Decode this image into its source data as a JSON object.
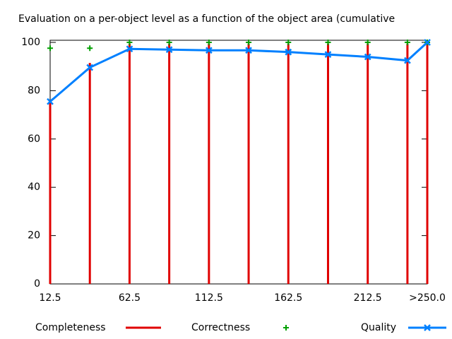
{
  "chart_data": {
    "type": "impulse-line",
    "title": "Evaluation on a per-object level as a function of the object area (cumulative",
    "x": [
      12.5,
      37.5,
      62.5,
      87.5,
      112.5,
      137.5,
      162.5,
      187.5,
      212.5,
      237.5,
      250
    ],
    "xlim": [
      12.5,
      250
    ],
    "xticks": [
      12.5,
      62.5,
      112.5,
      162.5,
      212.5,
      {
        "value": 250,
        "label": ">250.0"
      }
    ],
    "ylim": [
      0,
      100
    ],
    "yticks": [
      0,
      20,
      40,
      60,
      80,
      100
    ],
    "legend": "bottom",
    "series": [
      {
        "name": "Completeness",
        "color": "#e00000",
        "style": "impulses",
        "values": [
          75.5,
          91.5,
          99.5,
          99.5,
          99.5,
          99.5,
          99.5,
          99.5,
          99.5,
          99.5,
          100
        ]
      },
      {
        "name": "Correctness",
        "color": "#00a000",
        "style": "points",
        "values": [
          97.6,
          97.6,
          100,
          100,
          100,
          100,
          100,
          100,
          100,
          100,
          100
        ]
      },
      {
        "name": "Quality",
        "color": "#0080ff",
        "style": "linespoints",
        "values": [
          75.5,
          89.6,
          97.3,
          97,
          96.7,
          96.7,
          96,
          95,
          94,
          92.5,
          100
        ]
      }
    ]
  }
}
